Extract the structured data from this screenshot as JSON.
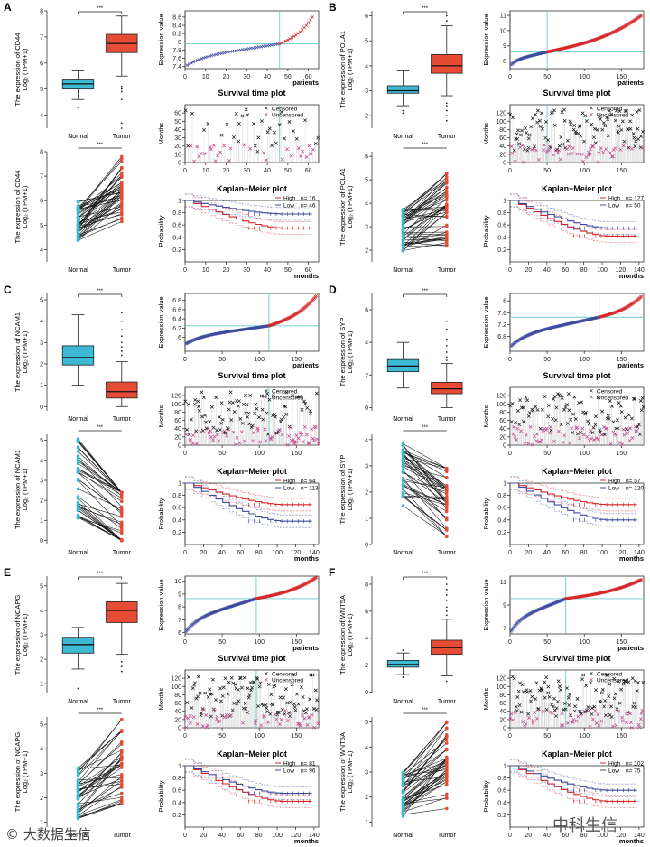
{
  "axis": {
    "normal_label": "Normal",
    "tumor_label": "Tumor",
    "sig": "***",
    "patients_label": "patients",
    "months_label": "months",
    "expr_ylabel": "Expression value",
    "surv_ylabel": "Months",
    "prob_ylabel": "Probability",
    "ylabel_line2": "Log₂ (TPM+1)"
  },
  "titles": {
    "survival": "Survival time plot",
    "km": "Kaplan−Meier plot"
  },
  "legend": {
    "censored": "Censored",
    "uncensored": "Uncensored",
    "high": "High",
    "low": "Low"
  },
  "colors": {
    "normal": "#3db9d3",
    "tumor": "#e64b35",
    "high": "#d62728",
    "low": "#3b4aa0",
    "censored": "#111111",
    "uncensored": "#c23b8a",
    "cutline": "#66cccc"
  },
  "watermarks": {
    "left": "© 大数据生信",
    "right": "中科生信"
  },
  "chart_data": [
    {
      "panel": "A",
      "gene": "CD44",
      "ylabel": "The expression of CD44",
      "box": {
        "type": "box",
        "ylim": [
          3.5,
          8
        ],
        "yticks": [
          4,
          5,
          6,
          7,
          8
        ],
        "normal": {
          "q1": 5.0,
          "median": 5.2,
          "q3": 5.35,
          "wlo": 4.6,
          "whi": 5.7,
          "outliers": [
            4.3
          ]
        },
        "tumor": {
          "q1": 6.4,
          "median": 6.75,
          "q3": 7.1,
          "wlo": 5.5,
          "whi": 7.8,
          "outliers": [
            5.1,
            5.0,
            4.9,
            4.6,
            3.7,
            3.5
          ]
        }
      },
      "paired": {
        "type": "paired",
        "ylim": [
          3.5,
          8
        ],
        "yticks": [
          4,
          5,
          6,
          7,
          8
        ],
        "n": 46,
        "normal_range": [
          4.3,
          6.0
        ],
        "tumor_range": [
          3.5,
          7.8
        ],
        "shift": 1.4
      },
      "expression": {
        "type": "scatter",
        "xlim": [
          0,
          65
        ],
        "ylim": [
          7.35,
          8.75
        ],
        "yticks": [
          7.4,
          7.6,
          7.8,
          8.0,
          8.2,
          8.4,
          8.6
        ],
        "xticks": [
          0,
          10,
          20,
          30,
          40,
          50,
          60
        ],
        "n": 62,
        "cutoff_index": 46,
        "cutoff_value": 7.95,
        "start": 7.4,
        "end": 8.6
      },
      "survival": {
        "type": "scatter",
        "xlim": [
          0,
          65
        ],
        "ylim": [
          0,
          70
        ],
        "yticks": [
          0,
          10,
          20,
          30,
          40,
          50,
          60
        ],
        "xticks": [
          0,
          10,
          20,
          30,
          40,
          50,
          60
        ],
        "cutoff_index": 46,
        "n": 62
      },
      "km": {
        "type": "line",
        "xlim": [
          0,
          65
        ],
        "ylim": [
          0,
          1
        ],
        "yticks": [
          0.2,
          0.4,
          0.6,
          0.8,
          1.0
        ],
        "xticks": [
          0,
          10,
          20,
          30,
          40,
          50,
          60
        ],
        "n_high": 16,
        "n_low": 46,
        "high_end": 0.55,
        "low_end": 0.78
      }
    },
    {
      "panel": "B",
      "gene": "POLA1",
      "ylabel": "The expression of POLA1",
      "box": {
        "type": "box",
        "ylim": [
          1.5,
          6.2
        ],
        "yticks": [
          2,
          3,
          4,
          5,
          6
        ],
        "normal": {
          "q1": 2.9,
          "median": 3.0,
          "q3": 3.2,
          "wlo": 2.4,
          "whi": 3.8,
          "outliers": [
            2.2,
            2.1
          ]
        },
        "tumor": {
          "q1": 3.7,
          "median": 4.0,
          "q3": 4.45,
          "wlo": 2.8,
          "whi": 5.6,
          "outliers": [
            2.5,
            2.4,
            2.2,
            2.0,
            1.8,
            5.8,
            6.0
          ]
        }
      },
      "paired": {
        "type": "paired",
        "ylim": [
          1.5,
          6.2
        ],
        "yticks": [
          2,
          3,
          4,
          5,
          6
        ],
        "n": 50,
        "normal_range": [
          1.9,
          3.8
        ],
        "tumor_range": [
          1.6,
          5.7
        ],
        "shift": 0.9
      },
      "expression": {
        "type": "scatter",
        "xlim": [
          0,
          180
        ],
        "ylim": [
          7.5,
          11.3
        ],
        "yticks": [
          8,
          9,
          10,
          11
        ],
        "xticks": [
          0,
          50,
          100,
          150
        ],
        "n": 177,
        "cutoff_index": 50,
        "cutoff_value": 8.6,
        "start": 7.7,
        "end": 11.0
      },
      "survival": {
        "type": "scatter",
        "xlim": [
          0,
          180
        ],
        "ylim": [
          0,
          140
        ],
        "yticks": [
          0,
          20,
          40,
          60,
          80,
          100,
          120
        ],
        "xticks": [
          0,
          50,
          100,
          150
        ],
        "cutoff_index": 50,
        "n": 150
      },
      "km": {
        "type": "line",
        "xlim": [
          0,
          145
        ],
        "ylim": [
          0,
          1
        ],
        "yticks": [
          0.2,
          0.4,
          0.6,
          0.8,
          1.0
        ],
        "xticks": [
          0,
          20,
          40,
          60,
          80,
          100,
          120,
          140
        ],
        "n_high": 127,
        "n_low": 50,
        "high_end": 0.42,
        "low_end": 0.55
      }
    },
    {
      "panel": "C",
      "gene": "NCAM1",
      "ylabel": "The expression of NCAM1",
      "box": {
        "type": "box",
        "ylim": [
          -0.2,
          5.3
        ],
        "yticks": [
          0,
          1,
          2,
          3,
          4,
          5
        ],
        "normal": {
          "q1": 1.95,
          "median": 2.3,
          "q3": 2.85,
          "wlo": 1.0,
          "whi": 4.3,
          "outliers": []
        },
        "tumor": {
          "q1": 0.4,
          "median": 0.7,
          "q3": 1.15,
          "wlo": 0.0,
          "whi": 2.1,
          "outliers": [
            2.4,
            2.6,
            2.8,
            3.0,
            3.3,
            3.6,
            4.0,
            4.4
          ]
        }
      },
      "paired": {
        "type": "paired",
        "ylim": [
          -0.2,
          5.3
        ],
        "yticks": [
          0,
          1,
          2,
          3,
          4,
          5
        ],
        "n": 40,
        "normal_range": [
          1.0,
          5.2
        ],
        "tumor_range": [
          0.0,
          2.4
        ],
        "shift": -1.7
      },
      "expression": {
        "type": "scatter",
        "xlim": [
          0,
          180
        ],
        "ylim": [
          5.7,
          6.95
        ],
        "yticks": [
          6.0,
          6.2,
          6.4,
          6.6,
          6.8
        ],
        "xticks": [
          0,
          50,
          100,
          150
        ],
        "n": 177,
        "cutoff_index": 113,
        "cutoff_value": 6.25,
        "start": 5.85,
        "end": 6.9
      },
      "survival": {
        "type": "scatter",
        "xlim": [
          0,
          180
        ],
        "ylim": [
          0,
          140
        ],
        "yticks": [
          0,
          20,
          40,
          60,
          80,
          100,
          120
        ],
        "xticks": [
          0,
          50,
          100,
          150
        ],
        "cutoff_index": 113,
        "n": 150
      },
      "km": {
        "type": "line",
        "xlim": [
          0,
          145
        ],
        "ylim": [
          0,
          1
        ],
        "yticks": [
          0.2,
          0.4,
          0.6,
          0.8,
          1.0
        ],
        "xticks": [
          0,
          20,
          40,
          60,
          80,
          100,
          120,
          140
        ],
        "n_high": 64,
        "n_low": 113,
        "high_end": 0.65,
        "low_end": 0.38
      }
    },
    {
      "panel": "D",
      "gene": "SYP",
      "ylabel": "The expression of SYP",
      "box": {
        "type": "box",
        "ylim": [
          -0.2,
          7
        ],
        "yticks": [
          0,
          2,
          4,
          6
        ],
        "normal": {
          "q1": 2.2,
          "median": 2.55,
          "q3": 2.95,
          "wlo": 1.2,
          "whi": 4.0,
          "outliers": []
        },
        "tumor": {
          "q1": 0.85,
          "median": 1.15,
          "q3": 1.55,
          "wlo": 0.0,
          "whi": 2.7,
          "outliers": [
            2.9,
            3.1,
            3.4,
            3.8,
            4.2,
            4.8,
            5.3
          ]
        }
      },
      "paired": {
        "type": "paired",
        "ylim": [
          0,
          4.2
        ],
        "yticks": [
          0,
          1,
          2,
          3,
          4
        ],
        "n": 40,
        "normal_range": [
          1.4,
          3.9
        ],
        "tumor_range": [
          0.3,
          2.9
        ],
        "shift": -1.1
      },
      "expression": {
        "type": "scatter",
        "xlim": [
          0,
          180
        ],
        "ylim": [
          6.3,
          8.25
        ],
        "yticks": [
          6.8,
          7.2,
          7.6,
          8.0
        ],
        "xticks": [
          0,
          50,
          100,
          150
        ],
        "n": 177,
        "cutoff_index": 120,
        "cutoff_value": 7.45,
        "start": 6.45,
        "end": 8.15
      },
      "survival": {
        "type": "scatter",
        "xlim": [
          0,
          180
        ],
        "ylim": [
          0,
          140
        ],
        "yticks": [
          0,
          20,
          40,
          60,
          80,
          100,
          120
        ],
        "xticks": [
          0,
          50,
          100,
          150
        ],
        "cutoff_index": 120,
        "n": 150
      },
      "km": {
        "type": "line",
        "xlim": [
          0,
          145
        ],
        "ylim": [
          0,
          1
        ],
        "yticks": [
          0.2,
          0.4,
          0.6,
          0.8,
          1.0
        ],
        "xticks": [
          0,
          20,
          40,
          60,
          80,
          100,
          120,
          140
        ],
        "n_high": 57,
        "n_low": 120,
        "high_end": 0.65,
        "low_end": 0.4
      }
    },
    {
      "panel": "E",
      "gene": "NCAPG",
      "ylabel": "The expression of NCAPG",
      "box": {
        "type": "box",
        "ylim": [
          0.6,
          5.4
        ],
        "yticks": [
          1,
          2,
          3,
          4,
          5
        ],
        "normal": {
          "q1": 2.25,
          "median": 2.6,
          "q3": 2.9,
          "wlo": 1.6,
          "whi": 3.3,
          "outliers": [
            0.8
          ]
        },
        "tumor": {
          "q1": 3.5,
          "median": 4.0,
          "q3": 4.35,
          "wlo": 2.2,
          "whi": 5.1,
          "outliers": [
            1.9,
            1.7,
            1.5
          ]
        }
      },
      "paired": {
        "type": "paired",
        "ylim": [
          0.8,
          5.3
        ],
        "yticks": [
          1,
          2,
          3,
          4,
          5
        ],
        "n": 40,
        "normal_range": [
          1.1,
          3.3
        ],
        "tumor_range": [
          1.6,
          5.2
        ],
        "shift": 1.2
      },
      "expression": {
        "type": "scatter",
        "xlim": [
          0,
          180
        ],
        "ylim": [
          5.9,
          10.4
        ],
        "yticks": [
          6,
          7,
          8,
          9,
          10
        ],
        "xticks": [
          0,
          50,
          100,
          150
        ],
        "n": 177,
        "cutoff_index": 96,
        "cutoff_value": 8.65,
        "start": 6.0,
        "end": 10.3
      },
      "survival": {
        "type": "scatter",
        "xlim": [
          0,
          180
        ],
        "ylim": [
          0,
          140
        ],
        "yticks": [
          0,
          20,
          40,
          60,
          80,
          100,
          120
        ],
        "xticks": [
          0,
          50,
          100,
          150
        ],
        "cutoff_index": 96,
        "n": 150
      },
      "km": {
        "type": "line",
        "xlim": [
          0,
          145
        ],
        "ylim": [
          0,
          1
        ],
        "yticks": [
          0.2,
          0.4,
          0.6,
          0.8,
          1.0
        ],
        "xticks": [
          0,
          20,
          40,
          60,
          80,
          100,
          120,
          140
        ],
        "n_high": 81,
        "n_low": 96,
        "high_end": 0.42,
        "low_end": 0.55
      }
    },
    {
      "panel": "F",
      "gene": "WNT5A",
      "ylabel": "The expression of WNT5A",
      "box": {
        "type": "box",
        "ylim": [
          -0.1,
          8.6
        ],
        "yticks": [
          0,
          2,
          4,
          6,
          8
        ],
        "normal": {
          "q1": 1.85,
          "median": 2.05,
          "q3": 2.35,
          "wlo": 1.3,
          "whi": 2.9,
          "outliers": [
            3.1,
            1.1
          ]
        },
        "tumor": {
          "q1": 2.8,
          "median": 3.3,
          "q3": 3.85,
          "wlo": 1.2,
          "whi": 5.4,
          "outliers": [
            5.7,
            6.0,
            6.3,
            6.8,
            7.2,
            7.6,
            8.0,
            0.8
          ]
        }
      },
      "paired": {
        "type": "paired",
        "ylim": [
          0.8,
          5.2
        ],
        "yticks": [
          1,
          2,
          3,
          4,
          5
        ],
        "n": 45,
        "normal_range": [
          1.2,
          3.0
        ],
        "tumor_range": [
          0.8,
          5.0
        ],
        "shift": 1.3
      },
      "expression": {
        "type": "scatter",
        "xlim": [
          0,
          180
        ],
        "ylim": [
          6.5,
          11.5
        ],
        "yticks": [
          7,
          9,
          11
        ],
        "xticks": [
          0,
          50,
          100,
          150
        ],
        "n": 177,
        "cutoff_index": 75,
        "cutoff_value": 9.55,
        "start": 6.6,
        "end": 11.2
      },
      "survival": {
        "type": "scatter",
        "xlim": [
          0,
          180
        ],
        "ylim": [
          0,
          140
        ],
        "yticks": [
          0,
          20,
          40,
          60,
          80,
          100,
          120
        ],
        "xticks": [
          0,
          50,
          100,
          150
        ],
        "cutoff_index": 75,
        "n": 150
      },
      "km": {
        "type": "line",
        "xlim": [
          0,
          145
        ],
        "ylim": [
          0,
          1
        ],
        "yticks": [
          0.2,
          0.4,
          0.6,
          0.8,
          1.0
        ],
        "xticks": [
          0,
          20,
          40,
          60,
          80,
          100,
          120,
          140
        ],
        "n_high": 102,
        "n_low": 75,
        "high_end": 0.42,
        "low_end": 0.6
      }
    }
  ]
}
